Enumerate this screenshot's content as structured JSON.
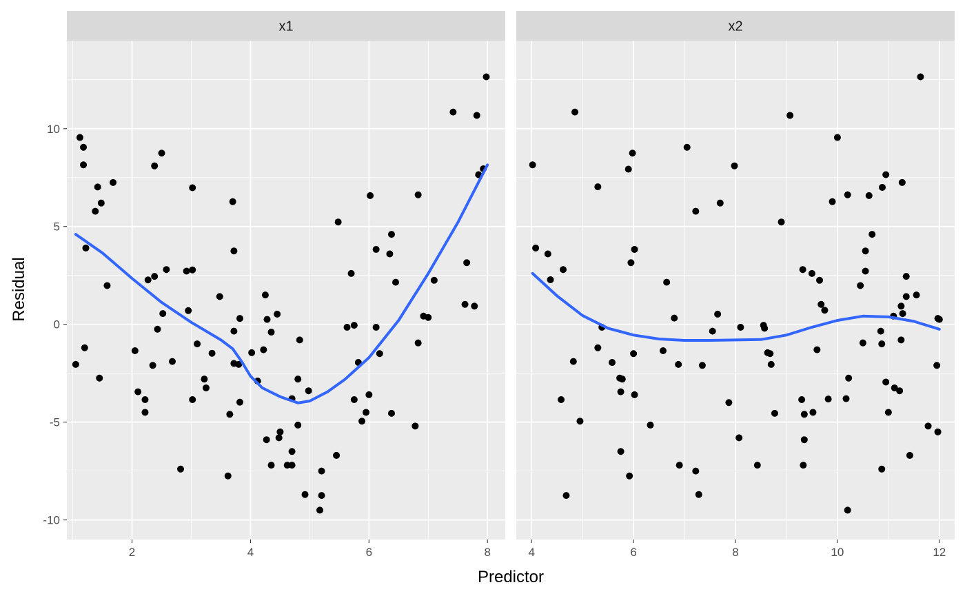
{
  "chart_data": {
    "type": "scatter",
    "facet_layout": "1 row x 2 columns, shared y axis",
    "xlabel": "Predictor",
    "ylabel": "Residual",
    "ylim": [
      -11,
      14.5
    ],
    "y_ticks": [
      -10,
      -5,
      0,
      5,
      10
    ],
    "y_tick_labels": [
      "-10",
      "-5",
      "0",
      "5",
      "10"
    ],
    "grid": true,
    "legend": "none",
    "point_color": "#000000",
    "smooth_color": "#3366ff",
    "panel_bg": "#ebebeb",
    "strip_bg": "#d9d9d9",
    "panels": [
      {
        "strip": "x1",
        "xlim": [
          0.9,
          8.3
        ],
        "x_ticks": [
          2,
          4,
          6,
          8
        ],
        "x_tick_labels": [
          "2",
          "4",
          "6",
          "8"
        ],
        "points": [
          [
            1.05,
            -2.05
          ],
          [
            1.12,
            9.55
          ],
          [
            1.18,
            9.05
          ],
          [
            1.18,
            8.15
          ],
          [
            1.22,
            3.9
          ],
          [
            1.2,
            -1.2
          ],
          [
            1.38,
            5.78
          ],
          [
            1.42,
            7.02
          ],
          [
            1.48,
            6.2
          ],
          [
            1.45,
            -2.75
          ],
          [
            1.58,
            1.98
          ],
          [
            1.68,
            7.25
          ],
          [
            2.05,
            -1.35
          ],
          [
            2.1,
            -3.45
          ],
          [
            2.22,
            -3.85
          ],
          [
            2.22,
            -4.5
          ],
          [
            2.27,
            2.27
          ],
          [
            2.35,
            -2.1
          ],
          [
            2.38,
            2.45
          ],
          [
            2.38,
            8.1
          ],
          [
            2.43,
            -0.25
          ],
          [
            2.5,
            8.75
          ],
          [
            2.52,
            0.55
          ],
          [
            2.58,
            2.8
          ],
          [
            2.68,
            -1.9
          ],
          [
            2.82,
            -7.4
          ],
          [
            2.92,
            2.72
          ],
          [
            2.95,
            0.7
          ],
          [
            3.02,
            2.78
          ],
          [
            3.02,
            6.98
          ],
          [
            3.02,
            -3.85
          ],
          [
            3.1,
            -1.0
          ],
          [
            3.22,
            -2.8
          ],
          [
            3.25,
            -3.25
          ],
          [
            3.35,
            -1.48
          ],
          [
            3.48,
            1.42
          ],
          [
            3.62,
            -7.75
          ],
          [
            3.65,
            -4.6
          ],
          [
            3.7,
            6.27
          ],
          [
            3.72,
            3.75
          ],
          [
            3.72,
            -0.35
          ],
          [
            3.72,
            -2.0
          ],
          [
            3.8,
            -2.05
          ],
          [
            3.82,
            -3.98
          ],
          [
            3.82,
            0.3
          ],
          [
            4.02,
            -1.45
          ],
          [
            4.12,
            -2.9
          ],
          [
            4.22,
            -1.3
          ],
          [
            4.25,
            1.5
          ],
          [
            4.27,
            -5.9
          ],
          [
            4.28,
            0.25
          ],
          [
            4.35,
            -0.4
          ],
          [
            4.35,
            -7.2
          ],
          [
            4.45,
            0.52
          ],
          [
            4.48,
            -5.8
          ],
          [
            4.5,
            -5.5
          ],
          [
            4.62,
            -7.2
          ],
          [
            4.7,
            -7.2
          ],
          [
            4.7,
            -6.5
          ],
          [
            4.7,
            -3.8
          ],
          [
            4.8,
            -5.15
          ],
          [
            4.8,
            -2.8
          ],
          [
            4.83,
            -0.8
          ],
          [
            4.92,
            -8.7
          ],
          [
            4.98,
            -3.4
          ],
          [
            5.17,
            -9.5
          ],
          [
            5.2,
            -8.75
          ],
          [
            5.2,
            -7.5
          ],
          [
            5.45,
            -6.7
          ],
          [
            5.48,
            5.23
          ],
          [
            5.63,
            -0.15
          ],
          [
            5.7,
            2.6
          ],
          [
            5.75,
            -3.85
          ],
          [
            5.75,
            -0.05
          ],
          [
            5.82,
            -1.95
          ],
          [
            5.88,
            -4.95
          ],
          [
            5.95,
            -4.5
          ],
          [
            6.0,
            -3.6
          ],
          [
            6.02,
            6.58
          ],
          [
            6.12,
            3.83
          ],
          [
            6.12,
            -0.15
          ],
          [
            6.18,
            -1.5
          ],
          [
            6.35,
            3.6
          ],
          [
            6.38,
            4.6
          ],
          [
            6.38,
            -4.55
          ],
          [
            6.45,
            2.15
          ],
          [
            6.78,
            -5.2
          ],
          [
            6.83,
            6.62
          ],
          [
            6.83,
            -0.95
          ],
          [
            6.92,
            0.42
          ],
          [
            7.0,
            0.35
          ],
          [
            7.1,
            2.25
          ],
          [
            7.42,
            10.85
          ],
          [
            7.62,
            1.02
          ],
          [
            7.65,
            3.15
          ],
          [
            7.78,
            0.93
          ],
          [
            7.82,
            10.68
          ],
          [
            7.85,
            7.65
          ],
          [
            7.93,
            7.95
          ],
          [
            7.98,
            12.65
          ]
        ],
        "smooth": [
          [
            1.05,
            4.6
          ],
          [
            1.5,
            3.65
          ],
          [
            2.0,
            2.35
          ],
          [
            2.5,
            1.12
          ],
          [
            3.0,
            0.1
          ],
          [
            3.5,
            -0.8
          ],
          [
            3.7,
            -1.25
          ],
          [
            3.85,
            -1.9
          ],
          [
            4.0,
            -2.65
          ],
          [
            4.2,
            -3.25
          ],
          [
            4.5,
            -3.7
          ],
          [
            4.8,
            -4.02
          ],
          [
            5.0,
            -3.92
          ],
          [
            5.3,
            -3.45
          ],
          [
            5.6,
            -2.8
          ],
          [
            6.0,
            -1.7
          ],
          [
            6.5,
            0.2
          ],
          [
            7.0,
            2.6
          ],
          [
            7.5,
            5.2
          ],
          [
            8.0,
            8.15
          ]
        ]
      },
      {
        "strip": "x2",
        "xlim": [
          3.7,
          12.3
        ],
        "x_ticks": [
          4,
          6,
          8,
          10,
          12
        ],
        "x_tick_labels": [
          "4",
          "6",
          "8",
          "10",
          "12"
        ],
        "points": [
          [
            4.02,
            8.15
          ],
          [
            4.08,
            3.9
          ],
          [
            4.32,
            3.6
          ],
          [
            4.37,
            2.28
          ],
          [
            4.58,
            -3.85
          ],
          [
            4.62,
            2.8
          ],
          [
            4.68,
            -8.75
          ],
          [
            4.82,
            -1.9
          ],
          [
            4.85,
            10.85
          ],
          [
            4.95,
            -4.95
          ],
          [
            5.3,
            7.03
          ],
          [
            5.3,
            -1.2
          ],
          [
            5.38,
            -0.15
          ],
          [
            5.58,
            -1.95
          ],
          [
            5.73,
            -2.75
          ],
          [
            5.75,
            -3.45
          ],
          [
            5.75,
            -6.5
          ],
          [
            5.78,
            -2.8
          ],
          [
            5.9,
            7.93
          ],
          [
            5.92,
            -7.75
          ],
          [
            5.95,
            3.15
          ],
          [
            5.98,
            8.75
          ],
          [
            6.0,
            -1.5
          ],
          [
            6.02,
            3.83
          ],
          [
            6.02,
            -3.6
          ],
          [
            6.33,
            -5.15
          ],
          [
            6.58,
            -1.35
          ],
          [
            6.65,
            2.15
          ],
          [
            6.8,
            0.32
          ],
          [
            6.88,
            -2.05
          ],
          [
            6.9,
            -7.2
          ],
          [
            7.05,
            9.05
          ],
          [
            7.22,
            5.78
          ],
          [
            7.22,
            -7.5
          ],
          [
            7.28,
            -8.7
          ],
          [
            7.35,
            -2.1
          ],
          [
            7.55,
            -0.35
          ],
          [
            7.65,
            0.52
          ],
          [
            7.7,
            6.2
          ],
          [
            7.87,
            -4.0
          ],
          [
            7.98,
            8.1
          ],
          [
            8.07,
            -5.8
          ],
          [
            8.1,
            -0.15
          ],
          [
            8.43,
            -7.2
          ],
          [
            8.55,
            -0.05
          ],
          [
            8.57,
            -0.2
          ],
          [
            8.63,
            -1.45
          ],
          [
            8.68,
            -1.5
          ],
          [
            8.7,
            -2.05
          ],
          [
            8.77,
            -4.55
          ],
          [
            8.9,
            5.23
          ],
          [
            9.07,
            10.68
          ],
          [
            9.3,
            -3.85
          ],
          [
            9.32,
            2.8
          ],
          [
            9.33,
            -7.2
          ],
          [
            9.35,
            -4.6
          ],
          [
            9.35,
            -5.9
          ],
          [
            9.5,
            2.6
          ],
          [
            9.52,
            -4.5
          ],
          [
            9.6,
            -1.3
          ],
          [
            9.65,
            2.25
          ],
          [
            9.68,
            1.02
          ],
          [
            9.75,
            0.72
          ],
          [
            9.82,
            -3.82
          ],
          [
            9.9,
            6.27
          ],
          [
            10.0,
            9.55
          ],
          [
            10.17,
            -3.8
          ],
          [
            10.2,
            6.62
          ],
          [
            10.22,
            -2.75
          ],
          [
            10.2,
            -9.5
          ],
          [
            10.45,
            1.98
          ],
          [
            10.5,
            -0.95
          ],
          [
            10.55,
            2.72
          ],
          [
            10.55,
            3.75
          ],
          [
            10.62,
            6.58
          ],
          [
            10.68,
            4.6
          ],
          [
            10.85,
            -0.35
          ],
          [
            10.87,
            -1.0
          ],
          [
            10.87,
            -7.4
          ],
          [
            10.88,
            7.0
          ],
          [
            10.95,
            7.65
          ],
          [
            10.95,
            -2.95
          ],
          [
            11.0,
            -4.5
          ],
          [
            11.1,
            0.42
          ],
          [
            11.12,
            -3.25
          ],
          [
            11.22,
            -3.4
          ],
          [
            11.25,
            0.93
          ],
          [
            11.25,
            -0.8
          ],
          [
            11.27,
            7.25
          ],
          [
            11.28,
            0.55
          ],
          [
            11.35,
            2.45
          ],
          [
            11.35,
            1.42
          ],
          [
            11.42,
            -6.7
          ],
          [
            11.55,
            1.5
          ],
          [
            11.63,
            12.65
          ],
          [
            11.78,
            -5.2
          ],
          [
            11.95,
            -2.1
          ],
          [
            11.97,
            -5.5
          ],
          [
            11.97,
            0.3
          ],
          [
            12.0,
            0.25
          ]
        ],
        "smooth": [
          [
            4.02,
            2.6
          ],
          [
            4.5,
            1.45
          ],
          [
            5.0,
            0.45
          ],
          [
            5.5,
            -0.2
          ],
          [
            6.0,
            -0.55
          ],
          [
            6.5,
            -0.75
          ],
          [
            7.0,
            -0.82
          ],
          [
            7.5,
            -0.82
          ],
          [
            8.0,
            -0.8
          ],
          [
            8.5,
            -0.78
          ],
          [
            9.0,
            -0.55
          ],
          [
            9.5,
            -0.15
          ],
          [
            10.0,
            0.2
          ],
          [
            10.5,
            0.42
          ],
          [
            11.0,
            0.38
          ],
          [
            11.5,
            0.15
          ],
          [
            12.0,
            -0.25
          ]
        ]
      }
    ]
  }
}
